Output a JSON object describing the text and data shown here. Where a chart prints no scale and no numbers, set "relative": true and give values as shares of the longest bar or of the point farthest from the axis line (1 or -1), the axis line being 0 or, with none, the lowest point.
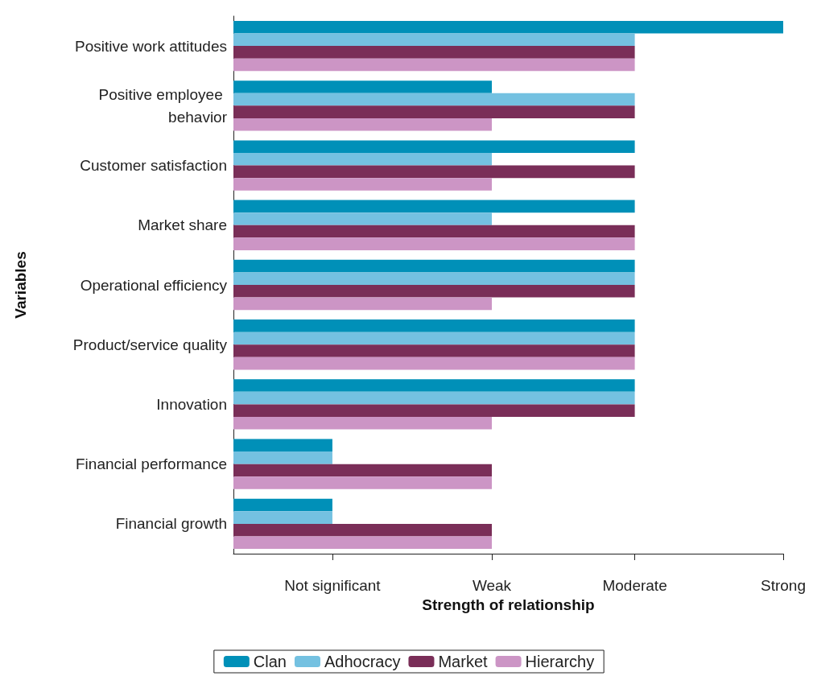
{
  "chart_data": {
    "type": "bar",
    "orientation": "horizontal",
    "relative": true,
    "xlabel": "Strength of relationship",
    "ylabel": "Variables",
    "categories": [
      "Positive work attitudes",
      "Positive employee behavior",
      "Customer satisfaction",
      "Market share",
      "Operational efficiency",
      "Product/service quality",
      "Innovation",
      "Financial performance",
      "Financial growth"
    ],
    "series": [
      {
        "name": "Clan",
        "color": "#0090b8",
        "values": [
          1,
          0.47,
          0.73,
          0.73,
          0.73,
          0.73,
          0.73,
          0.18,
          0.18
        ]
      },
      {
        "name": "Adhocracy",
        "color": "#74c1e1",
        "values": [
          0.73,
          0.73,
          0.47,
          0.47,
          0.73,
          0.73,
          0.73,
          0.18,
          0.18
        ]
      },
      {
        "name": "Market",
        "color": "#7a2e58",
        "values": [
          0.73,
          0.73,
          0.73,
          0.73,
          0.73,
          0.73,
          0.73,
          0.47,
          0.47
        ]
      },
      {
        "name": "Hierarchy",
        "color": "#cc95c5",
        "values": [
          0.73,
          0.47,
          0.47,
          0.73,
          0.47,
          0.73,
          0.47,
          0.47,
          0.47
        ]
      }
    ],
    "annotations": [
      {
        "text": "Not significant",
        "x": 0.18
      },
      {
        "text": "Weak",
        "x": 0.47
      },
      {
        "text": "Moderate",
        "x": 0.73
      },
      {
        "text": "Strong",
        "x": 1
      }
    ],
    "grid": false,
    "legend": "bottom"
  }
}
